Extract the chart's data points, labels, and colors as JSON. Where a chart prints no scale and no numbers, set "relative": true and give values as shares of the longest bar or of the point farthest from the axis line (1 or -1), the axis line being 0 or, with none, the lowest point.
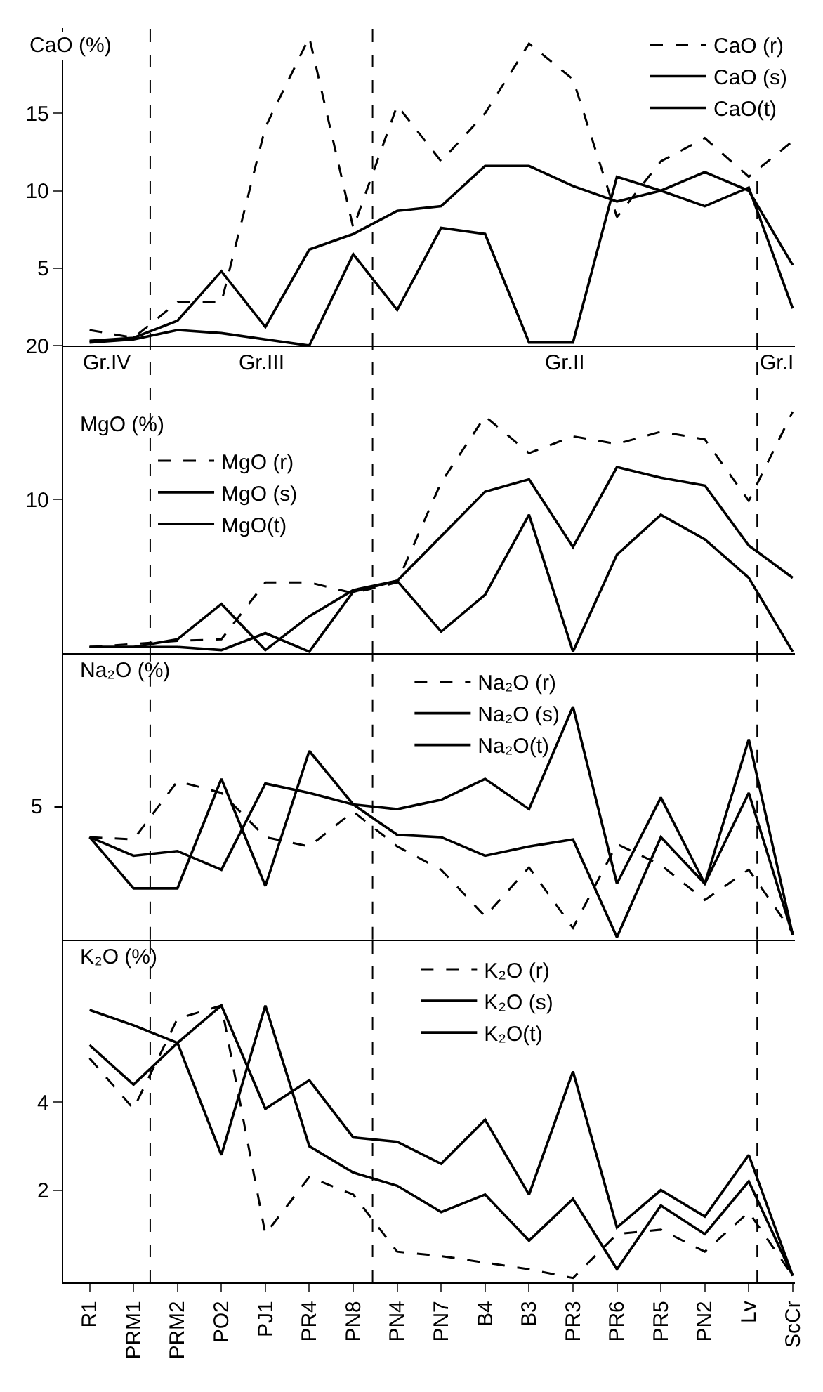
{
  "chart_data": [
    {
      "type": "line",
      "ylabel": "CaO (%)",
      "categories": [
        "R1",
        "PRM1",
        "PRM2",
        "PO2",
        "PJ1",
        "PR4",
        "PN8",
        "PN4",
        "PN7",
        "B4",
        "B3",
        "PR3",
        "PR6",
        "PR5",
        "PN2",
        "Lv",
        "ScCr"
      ],
      "ylim": [
        0,
        20.5
      ],
      "yticks": [
        5,
        10,
        15
      ],
      "grid": false,
      "legend": "top right",
      "tick_labels": "y",
      "marker": "none",
      "series": [
        {
          "name": "CaO (r)",
          "color": "#000000",
          "line_style": "dashed",
          "values": [
            1.0,
            0.5,
            2.8,
            2.8,
            14.1,
            19.9,
            7.6,
            15.5,
            11.9,
            15.0,
            19.5,
            17.2,
            8.3,
            11.9,
            13.4,
            10.9,
            13.2
          ]
        },
        {
          "name": "CaO (s)",
          "color": "#000000",
          "line_style": "solid",
          "values": [
            0.3,
            0.5,
            1.6,
            4.8,
            1.2,
            6.2,
            7.2,
            8.7,
            9.0,
            11.6,
            11.6,
            10.3,
            9.3,
            10.0,
            11.2,
            10.0,
            5.2
          ]
        },
        {
          "name": "CaO(t)",
          "color": "#000000",
          "line_style": "solid",
          "values": [
            0.2,
            0.4,
            1.0,
            0.8,
            0.4,
            0.0,
            5.9,
            2.3,
            7.6,
            7.2,
            0.2,
            0.2,
            10.9,
            10.0,
            9.0,
            10.2,
            2.4
          ]
        }
      ]
    },
    {
      "type": "line",
      "ylabel": "MgO (%)",
      "categories": [
        "R1",
        "PRM1",
        "PRM2",
        "PO2",
        "PJ1",
        "PR4",
        "PN8",
        "PN4",
        "PN7",
        "B4",
        "B3",
        "PR3",
        "PR6",
        "PR5",
        "PN2",
        "Lv",
        "ScCr"
      ],
      "ylim": [
        0,
        20
      ],
      "yticks": [
        10,
        20
      ],
      "grid": false,
      "legend": "top left",
      "tick_labels": "y",
      "marker": "none",
      "series": [
        {
          "name": "MgO (r)",
          "color": "#000000",
          "line_style": "dashed",
          "values": [
            0.4,
            0.6,
            0.8,
            0.9,
            4.6,
            4.6,
            3.9,
            4.6,
            11.1,
            15.4,
            13.0,
            14.1,
            13.6,
            14.4,
            13.9,
            9.9,
            15.7
          ]
        },
        {
          "name": "MgO (s)",
          "color": "#000000",
          "line_style": "solid",
          "values": [
            0.4,
            0.4,
            0.9,
            3.2,
            0.2,
            2.4,
            4.1,
            4.7,
            7.6,
            10.5,
            11.3,
            6.9,
            12.1,
            11.4,
            10.9,
            7.0,
            4.9
          ]
        },
        {
          "name": "MgO(t)",
          "color": "#000000",
          "line_style": "solid",
          "values": [
            0.4,
            0.4,
            0.4,
            0.2,
            1.3,
            0.1,
            4.0,
            4.7,
            1.4,
            3.8,
            9.0,
            0.1,
            6.4,
            9.0,
            7.4,
            4.9,
            0.1
          ]
        }
      ],
      "annotations": [
        "Gr.IV",
        "Gr.III",
        "Gr.II",
        "Gr.I"
      ]
    },
    {
      "type": "line",
      "ylabel": "Na₂O (%)",
      "categories": [
        "R1",
        "PRM1",
        "PRM2",
        "PO2",
        "PJ1",
        "PR4",
        "PN8",
        "PN4",
        "PN7",
        "B4",
        "B3",
        "PR3",
        "PR6",
        "PR5",
        "PN2",
        "Lv",
        "ScCr"
      ],
      "relative": true,
      "grid": false,
      "legend": "top",
      "tick_labels": false,
      "marker": "none",
      "series": [
        {
          "name": "Na₂O (r)",
          "color": "#000000",
          "line_style": "dashed",
          "values": [
            0.44,
            0.43,
            0.68,
            0.63,
            0.44,
            0.4,
            0.55,
            0.4,
            0.3,
            0.1,
            0.31,
            0.05,
            0.41,
            0.32,
            0.17,
            0.3,
            0.03
          ]
        },
        {
          "name": "Na₂O (s)",
          "color": "#000000",
          "line_style": "solid",
          "values": [
            0.44,
            0.36,
            0.38,
            0.3,
            0.67,
            0.63,
            0.58,
            0.56,
            0.6,
            0.69,
            0.56,
            1.0,
            0.24,
            0.61,
            0.24,
            0.86,
            0.02
          ]
        },
        {
          "name": "Na₂O(t)",
          "color": "#000000",
          "line_style": "solid",
          "values": [
            0.44,
            0.22,
            0.22,
            0.69,
            0.23,
            0.81,
            0.58,
            0.45,
            0.44,
            0.36,
            0.4,
            0.43,
            0.01,
            0.44,
            0.24,
            0.63,
            0.02
          ]
        }
      ],
      "annotations": [
        "5"
      ]
    },
    {
      "type": "line",
      "ylabel": "K₂O (%)",
      "categories": [
        "R1",
        "PRM1",
        "PRM2",
        "PO2",
        "PJ1",
        "PR4",
        "PN8",
        "PN4",
        "PN7",
        "B4",
        "B3",
        "PR3",
        "PR6",
        "PR5",
        "PN2",
        "Lv",
        "ScCr"
      ],
      "ylim": [
        -0.1,
        7.7
      ],
      "yticks": [
        2,
        4
      ],
      "grid": false,
      "legend": "top",
      "marker": "none",
      "series": [
        {
          "name": "K₂O (r)",
          "color": "#000000",
          "line_style": "dashed",
          "values": [
            5.0,
            3.85,
            5.9,
            6.2,
            1.0,
            2.3,
            1.9,
            0.6,
            0.5,
            0.35,
            0.2,
            0.0,
            1.0,
            1.1,
            0.6,
            1.5,
            0.05
          ]
        },
        {
          "name": "K₂O (s)",
          "color": "#000000",
          "line_style": "solid",
          "values": [
            6.1,
            5.75,
            5.35,
            6.2,
            3.85,
            4.5,
            3.2,
            3.1,
            2.6,
            3.6,
            1.9,
            4.7,
            1.15,
            2.0,
            1.4,
            2.8,
            0.05
          ]
        },
        {
          "name": "K₂O(t)",
          "color": "#000000",
          "line_style": "solid",
          "values": [
            5.3,
            4.4,
            5.35,
            2.8,
            6.2,
            3.0,
            2.4,
            2.1,
            1.5,
            1.9,
            0.85,
            1.8,
            0.2,
            1.65,
            1.0,
            2.2,
            0.05
          ]
        }
      ]
    }
  ]
}
